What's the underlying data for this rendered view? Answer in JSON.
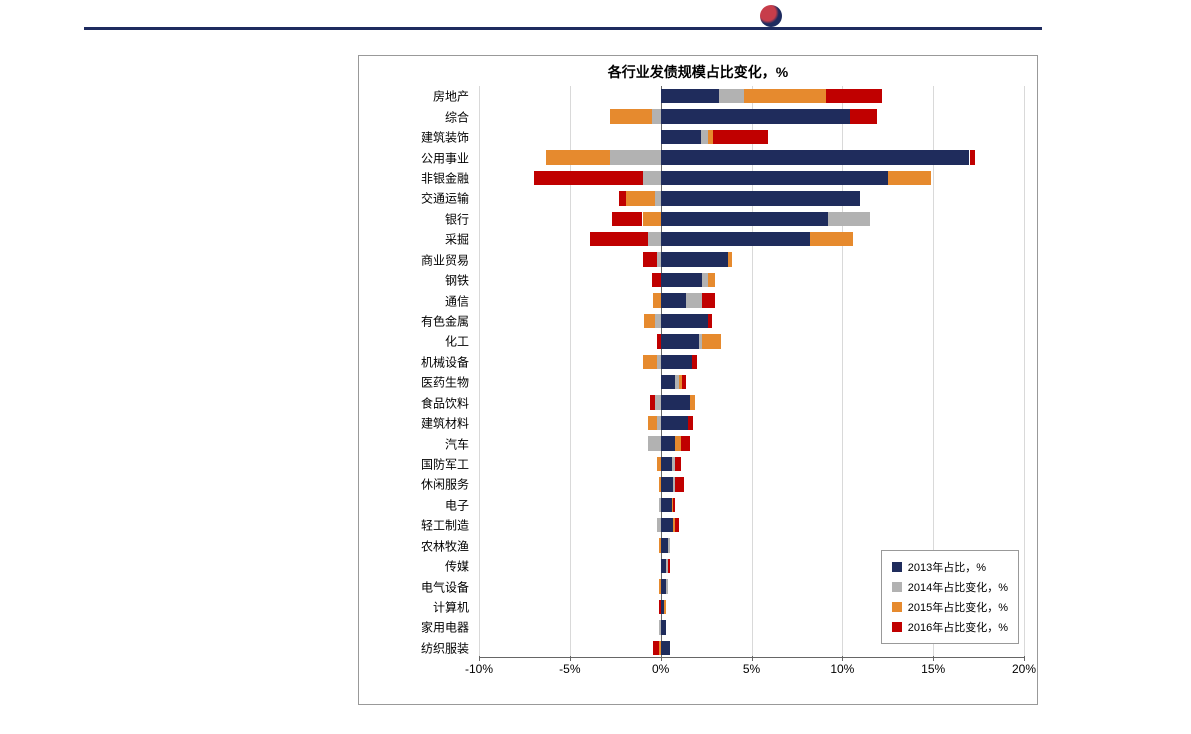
{
  "logo_text": "",
  "chart": {
    "type": "bar",
    "orientation": "horizontal",
    "stacked": true,
    "title": "各行业发债规模占比变化，%",
    "title_fontsize": 14,
    "title_fontweight": "bold",
    "background_color": "#ffffff",
    "border_color": "#999999",
    "grid_color": "#d9d9d9",
    "axis_color": "#666666",
    "label_fontsize": 12,
    "xlim": [
      -10,
      20
    ],
    "xtick_step": 5,
    "xtick_labels": [
      "-10%",
      "-5%",
      "0%",
      "5%",
      "10%",
      "15%",
      "20%"
    ],
    "bar_height_ratio": 0.7,
    "categories": [
      "房地产",
      "综合",
      "建筑装饰",
      "公用事业",
      "非银金融",
      "交通运输",
      "银行",
      "采掘",
      "商业贸易",
      "钢铁",
      "通信",
      "有色金属",
      "化工",
      "机械设备",
      "医药生物",
      "食品饮料",
      "建筑材料",
      "汽车",
      "国防军工",
      "休闲服务",
      "电子",
      "轻工制造",
      "农林牧渔",
      "传媒",
      "电气设备",
      "计算机",
      "家用电器",
      "纺织服装"
    ],
    "series": [
      {
        "name": "2013年占比，%",
        "color": "#1f2c5c",
        "values": [
          3.2,
          10.4,
          2.2,
          17.0,
          12.5,
          11.0,
          9.2,
          8.2,
          3.7,
          2.3,
          1.4,
          2.6,
          2.1,
          1.7,
          0.8,
          1.6,
          1.5,
          0.8,
          0.6,
          0.7,
          0.6,
          0.7,
          0.4,
          0.3,
          0.3,
          0.2,
          0.3,
          0.5
        ]
      },
      {
        "name": "2014年占比变化，%",
        "color": "#b2b2b2",
        "values": [
          1.4,
          -0.5,
          0.4,
          -2.8,
          -1.0,
          -0.3,
          2.3,
          -0.7,
          -0.2,
          0.3,
          0.9,
          -0.3,
          0.2,
          -0.2,
          0.2,
          -0.3,
          -0.2,
          -0.7,
          0.2,
          0.1,
          -0.1,
          -0.2,
          0.1,
          0.1,
          0.1,
          0.0,
          -0.1,
          0.0
        ]
      },
      {
        "name": "2015年占比变化，%",
        "color": "#e68a2e",
        "values": [
          4.5,
          -2.3,
          0.3,
          -3.5,
          2.4,
          -1.6,
          -1.0,
          2.4,
          0.2,
          0.4,
          -0.4,
          -0.6,
          1.0,
          -0.8,
          0.2,
          0.3,
          -0.5,
          0.3,
          -0.2,
          -0.1,
          0.1,
          0.1,
          -0.1,
          0.0,
          -0.1,
          0.1,
          0.0,
          -0.1
        ]
      },
      {
        "name": "2016年占比变化，%",
        "color": "#c00000",
        "values": [
          3.1,
          1.5,
          3.0,
          0.3,
          -6.0,
          -0.4,
          -1.7,
          -3.2,
          -0.8,
          -0.5,
          0.7,
          0.2,
          -0.2,
          0.3,
          0.2,
          -0.3,
          0.3,
          0.5,
          0.3,
          0.5,
          0.1,
          0.2,
          0.0,
          0.1,
          0.0,
          -0.1,
          0.0,
          -0.3
        ]
      }
    ],
    "legend": {
      "position": "bottom-right",
      "border_color": "#999999",
      "background": "#ffffff",
      "fontsize": 11,
      "items": [
        {
          "label": "2013年占比，%",
          "color": "#1f2c5c"
        },
        {
          "label": "2014年占比变化，%",
          "color": "#b2b2b2"
        },
        {
          "label": "2015年占比变化，%",
          "color": "#e68a2e"
        },
        {
          "label": "2016年占比变化，%",
          "color": "#c00000"
        }
      ]
    }
  },
  "top_border_color": "#1e2b5f"
}
